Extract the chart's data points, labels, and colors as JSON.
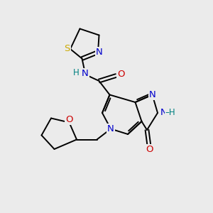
{
  "background_color": "#ebebeb",
  "atom_colors": {
    "C": "#000000",
    "N": "#0000cc",
    "O": "#cc0000",
    "S": "#ccaa00",
    "H": "#008080"
  },
  "figsize": [
    3.0,
    3.0
  ],
  "dpi": 100
}
